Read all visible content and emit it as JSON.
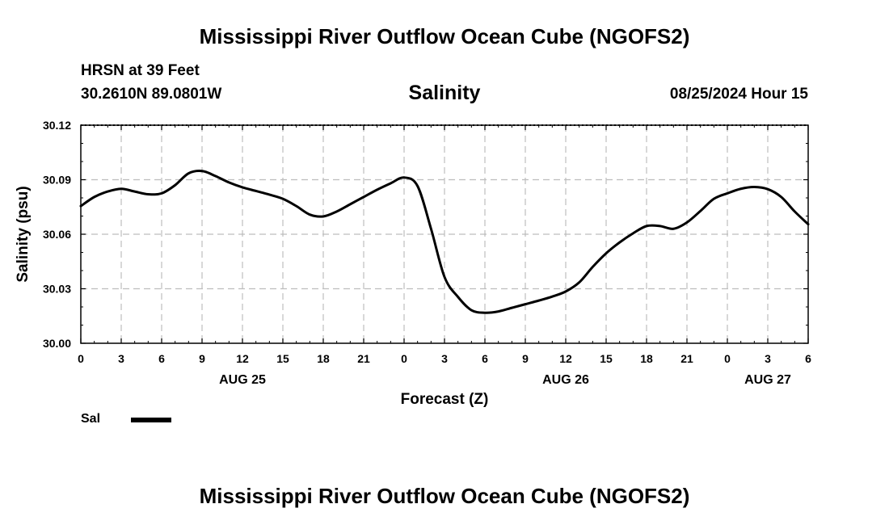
{
  "header": {
    "title": "Mississippi River Outflow Ocean Cube (NGOFS2)",
    "station": "HRSN at 39 Feet",
    "coordinates": "30.2610N  89.0801W",
    "variable_title": "Salinity",
    "datetime": "08/25/2024 Hour 15"
  },
  "footer": {
    "title": "Mississippi River Outflow Ocean Cube (NGOFS2)"
  },
  "legend": {
    "label": "Sal",
    "color": "#000000"
  },
  "chart_data": {
    "type": "line",
    "title": "Salinity",
    "xlabel": "Forecast (Z)",
    "ylabel": "Salinity (psu)",
    "xlim": [
      0,
      54
    ],
    "ylim": [
      30.0,
      30.12
    ],
    "y_ticks": [
      30.0,
      30.03,
      30.06,
      30.09,
      30.12
    ],
    "y_tick_labels": [
      "30.00",
      "30.03",
      "30.06",
      "30.09",
      "30.12"
    ],
    "x_ticks": [
      0,
      3,
      6,
      9,
      12,
      15,
      18,
      21,
      24,
      27,
      30,
      33,
      36,
      39,
      42,
      45,
      48,
      51,
      54
    ],
    "x_tick_labels": [
      "0",
      "3",
      "6",
      "9",
      "12",
      "15",
      "18",
      "21",
      "0",
      "3",
      "6",
      "9",
      "12",
      "15",
      "18",
      "21",
      "0",
      "3",
      "6"
    ],
    "date_labels": [
      {
        "x": 12,
        "label": "AUG 25"
      },
      {
        "x": 36,
        "label": "AUG 26"
      },
      {
        "x": 51,
        "label": "AUG 27"
      }
    ],
    "grid": true,
    "legend_position": "bottom-left",
    "series": [
      {
        "name": "Sal",
        "color": "#000000",
        "x": [
          0,
          1,
          2,
          3,
          4,
          5,
          6,
          7,
          8,
          9,
          10,
          11,
          12,
          13,
          14,
          15,
          16,
          17,
          18,
          19,
          20,
          21,
          22,
          23,
          24,
          25,
          26,
          27,
          28,
          29,
          30,
          31,
          32,
          33,
          34,
          35,
          36,
          37,
          38,
          39,
          40,
          41,
          42,
          43,
          44,
          45,
          46,
          47,
          48,
          49,
          50,
          51,
          52,
          53,
          54
        ],
        "values": [
          30.0755,
          30.0805,
          30.0835,
          30.085,
          30.0835,
          30.082,
          30.0825,
          30.087,
          30.0935,
          30.0948,
          30.092,
          30.0885,
          30.0858,
          30.0838,
          30.0818,
          30.0795,
          30.0755,
          30.0708,
          30.0698,
          30.0725,
          30.0765,
          30.0805,
          30.0845,
          30.088,
          30.0912,
          30.0865,
          30.063,
          30.0365,
          30.0255,
          30.0182,
          30.0168,
          30.0175,
          30.0195,
          30.0215,
          30.0235,
          30.0257,
          30.0285,
          30.0335,
          30.042,
          30.0495,
          30.0555,
          30.0605,
          30.0645,
          30.0645,
          30.063,
          30.0665,
          30.0728,
          30.0795,
          30.0825,
          30.085,
          30.086,
          30.0848,
          30.0805,
          30.0725,
          30.0655
        ]
      }
    ]
  }
}
